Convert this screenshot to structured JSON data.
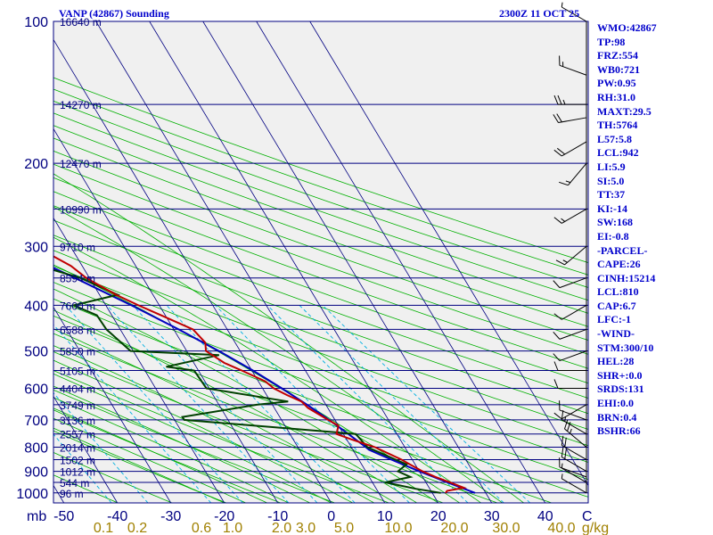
{
  "header": {
    "title": "VANP (42867) Sounding",
    "time": "2300Z 11 OCT 25"
  },
  "indices": [
    "WMO:42867",
    "TP:98",
    "FRZ:554",
    "WB0:721",
    "PW:0.95",
    "RH:31.0",
    "MAXT:29.5",
    "TH:5764",
    "L57:5.8",
    "LCL:942",
    "LI:5.9",
    "SI:5.0",
    "TT:37",
    "KI:-14",
    "SW:168",
    "EI:-0.8",
    "-PARCEL-",
    "CAPE:26",
    "CINH:15214",
    "LCL:810",
    "CAP:6.7",
    "LFC:-1",
    "-WIND-",
    "STM:300/10",
    "HEL:28",
    "SHR+:0.0",
    "SRDS:131",
    "EHI:0.0",
    "BRN:0.4",
    "BSHR:66"
  ],
  "colors": {
    "background": "#f0f0f0",
    "axis": "#000080",
    "isotherm": "#000080",
    "dry_adiabat": "#00b000",
    "moist_adiabat": "#00b000",
    "mixing_ratio": "#00b0e0",
    "temperature": "#c00000",
    "dewpoint": "#004000",
    "parcel": "#0000c0",
    "mixing_label": "#a08000",
    "text": "#0000cc"
  },
  "chart_data": {
    "type": "skew-t",
    "title": "VANP (42867) Sounding",
    "pressure_axis_label": "mb",
    "pressure_ticks": [
      100,
      200,
      300,
      400,
      500,
      600,
      700,
      800,
      900,
      1000
    ],
    "temperature_axis_label": "C",
    "temperature_ticks": [
      -50,
      -40,
      -30,
      -20,
      -10,
      0,
      10,
      20,
      30,
      40
    ],
    "mixing_axis_label": "g/kg",
    "mixing_ratio_labels": [
      "0.1",
      "0.2",
      "0.6",
      "1.0",
      "2.0",
      "3.0",
      "5.0",
      "10.0",
      "20.0",
      "30.0",
      "40.0"
    ],
    "mixing_ratio_values": [
      0.1,
      0.2,
      0.6,
      1.0,
      2.0,
      3.0,
      5.0,
      10.0,
      20.0,
      30.0,
      40.0
    ],
    "height_levels": [
      {
        "p": 100,
        "label": "16640 m"
      },
      {
        "p": 150,
        "label": "14270 m"
      },
      {
        "p": 200,
        "label": "12470 m"
      },
      {
        "p": 250,
        "label": "10990 m"
      },
      {
        "p": 300,
        "label": "9710 m"
      },
      {
        "p": 350,
        "label": "8594 m"
      },
      {
        "p": 400,
        "label": "7600 m"
      },
      {
        "p": 450,
        "label": "6588 m"
      },
      {
        "p": 500,
        "label": "5850 m"
      },
      {
        "p": 550,
        "label": "5105 m"
      },
      {
        "p": 600,
        "label": "4404 m"
      },
      {
        "p": 650,
        "label": "3749 m"
      },
      {
        "p": 700,
        "label": "3136 m"
      },
      {
        "p": 750,
        "label": "2557 m"
      },
      {
        "p": 800,
        "label": "2014 m"
      },
      {
        "p": 850,
        "label": "1502 m"
      },
      {
        "p": 900,
        "label": "1012 m"
      },
      {
        "p": 950,
        "label": "544 m"
      },
      {
        "p": 1000,
        "label": "96 m"
      }
    ],
    "temperature": [
      {
        "p": 1000,
        "t": 22.5
      },
      {
        "p": 990,
        "t": 23.0
      },
      {
        "p": 975,
        "t": 26.5
      },
      {
        "p": 950,
        "t": 24.5
      },
      {
        "p": 925,
        "t": 22.4
      },
      {
        "p": 900,
        "t": 20.6
      },
      {
        "p": 870,
        "t": 19.0
      },
      {
        "p": 850,
        "t": 18.0
      },
      {
        "p": 800,
        "t": 14.4
      },
      {
        "p": 770,
        "t": 10.9
      },
      {
        "p": 750,
        "t": 8.7
      },
      {
        "p": 720,
        "t": 10.0
      },
      {
        "p": 700,
        "t": 8.7
      },
      {
        "p": 660,
        "t": 6.3
      },
      {
        "p": 640,
        "t": 5.8
      },
      {
        "p": 620,
        "t": 3.8
      },
      {
        "p": 600,
        "t": 2.1
      },
      {
        "p": 580,
        "t": 1.3
      },
      {
        "p": 550,
        "t": -1.9
      },
      {
        "p": 530,
        "t": -4.3
      },
      {
        "p": 500,
        "t": -6.4
      },
      {
        "p": 480,
        "t": -5.6
      },
      {
        "p": 450,
        "t": -6.4
      },
      {
        "p": 420,
        "t": -10.8
      },
      {
        "p": 400,
        "t": -13.9
      },
      {
        "p": 380,
        "t": -16.9
      },
      {
        "p": 350,
        "t": -20.6
      },
      {
        "p": 330,
        "t": -22.1
      },
      {
        "p": 300,
        "t": -26.6
      },
      {
        "p": 270,
        "t": -33.8
      },
      {
        "p": 250,
        "t": -38.5
      },
      {
        "p": 220,
        "t": -43.9
      },
      {
        "p": 200,
        "t": -47.9
      },
      {
        "p": 180,
        "t": -54.1
      },
      {
        "p": 150,
        "t": -63.9
      },
      {
        "p": 130,
        "t": -66.0
      },
      {
        "p": 100,
        "t": -75.6
      }
    ],
    "dewpoint": [
      {
        "p": 1000,
        "td": 21.6
      },
      {
        "p": 980,
        "td": 17.4
      },
      {
        "p": 950,
        "td": 12.4
      },
      {
        "p": 925,
        "td": 17.7
      },
      {
        "p": 900,
        "td": 16.0
      },
      {
        "p": 870,
        "td": 18.4
      },
      {
        "p": 850,
        "td": 16.9
      },
      {
        "p": 800,
        "td": 13.0
      },
      {
        "p": 750,
        "td": 12.3
      },
      {
        "p": 700,
        "td": -18.2
      },
      {
        "p": 690,
        "td": -18.2
      },
      {
        "p": 650,
        "td": -2.9
      },
      {
        "p": 640,
        "td": 3.3
      },
      {
        "p": 600,
        "td": -10.5
      },
      {
        "p": 550,
        "td": -10.8
      },
      {
        "p": 540,
        "td": -15.6
      },
      {
        "p": 510,
        "td": -4.4
      },
      {
        "p": 500,
        "td": -20.5
      },
      {
        "p": 450,
        "td": -22.6
      },
      {
        "p": 420,
        "td": -22.8
      },
      {
        "p": 400,
        "td": -26.0
      },
      {
        "p": 380,
        "td": -16.6
      },
      {
        "p": 350,
        "td": -21.7
      },
      {
        "p": 330,
        "td": -28.0
      },
      {
        "p": 300,
        "td": -41.6
      },
      {
        "p": 270,
        "td": -56.7
      },
      {
        "p": 255,
        "td": -55.8
      },
      {
        "p": 250,
        "td": -53.0
      },
      {
        "p": 235,
        "td": -44.7
      },
      {
        "p": 210,
        "td": -49.3
      },
      {
        "p": 190,
        "td": -61.9
      },
      {
        "p": 180,
        "td": -61.7
      },
      {
        "p": 160,
        "td": -68.7
      },
      {
        "p": 150,
        "td": -71.9
      },
      {
        "p": 130,
        "td": -70.0
      },
      {
        "p": 110,
        "td": -72.7
      },
      {
        "p": 100,
        "td": -74.7
      }
    ],
    "parcel": [
      {
        "p": 1000,
        "t": 28.0
      },
      {
        "p": 950,
        "t": 24.0
      },
      {
        "p": 900,
        "t": 20.0
      },
      {
        "p": 850,
        "t": 16.1
      },
      {
        "p": 810,
        "t": 13.0
      },
      {
        "p": 800,
        "t": 12.7
      },
      {
        "p": 750,
        "t": 10.9
      },
      {
        "p": 700,
        "t": 8.9
      },
      {
        "p": 650,
        "t": 6.5
      },
      {
        "p": 600,
        "t": 3.6
      },
      {
        "p": 550,
        "t": 0.2
      },
      {
        "p": 500,
        "t": -4.0
      },
      {
        "p": 450,
        "t": -9.1
      },
      {
        "p": 400,
        "t": -15.2
      },
      {
        "p": 350,
        "t": -22.7
      },
      {
        "p": 300,
        "t": -31.9
      },
      {
        "p": 250,
        "t": -43.3
      },
      {
        "p": 200,
        "t": -57.4
      },
      {
        "p": 150,
        "t": -72.2
      },
      {
        "p": 100,
        "t": -94.1
      }
    ],
    "wind_barbs": [
      {
        "p": 1000,
        "dir": 300,
        "spd": 5
      },
      {
        "p": 950,
        "dir": 300,
        "spd": 5
      },
      {
        "p": 925,
        "dir": 290,
        "spd": 10
      },
      {
        "p": 900,
        "dir": 300,
        "spd": 20
      },
      {
        "p": 850,
        "dir": 300,
        "spd": 20
      },
      {
        "p": 800,
        "dir": 310,
        "spd": 25
      },
      {
        "p": 750,
        "dir": 300,
        "spd": 15
      },
      {
        "p": 700,
        "dir": 290,
        "spd": 10
      },
      {
        "p": 650,
        "dir": 240,
        "spd": 10
      },
      {
        "p": 600,
        "dir": 270,
        "spd": 10
      },
      {
        "p": 550,
        "dir": 270,
        "spd": 10
      },
      {
        "p": 500,
        "dir": 250,
        "spd": 10
      },
      {
        "p": 450,
        "dir": 250,
        "spd": 10
      },
      {
        "p": 400,
        "dir": 240,
        "spd": 10
      },
      {
        "p": 350,
        "dir": 250,
        "spd": 10
      },
      {
        "p": 300,
        "dir": 230,
        "spd": 15
      },
      {
        "p": 250,
        "dir": 240,
        "spd": 15
      },
      {
        "p": 200,
        "dir": 220,
        "spd": 15
      },
      {
        "p": 180,
        "dir": 240,
        "spd": 20
      },
      {
        "p": 160,
        "dir": 260,
        "spd": 20
      },
      {
        "p": 150,
        "dir": 270,
        "spd": 25
      },
      {
        "p": 130,
        "dir": 290,
        "spd": 15
      },
      {
        "p": 100,
        "dir": 300,
        "spd": 5
      }
    ]
  }
}
